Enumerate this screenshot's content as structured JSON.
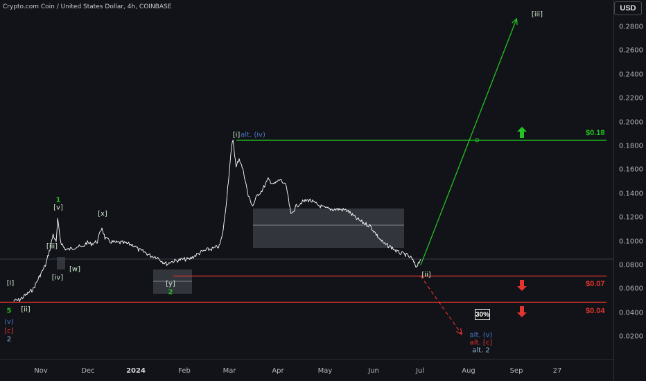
{
  "header": {
    "title": "Crypto.com Coin / United States Dollar, 4h, COINBASE"
  },
  "price_axis": {
    "currency": "USD",
    "ticks": [
      "0.2800",
      "0.2600",
      "0.2400",
      "0.2200",
      "0.2000",
      "0.1800",
      "0.1600",
      "0.1400",
      "0.1200",
      "0.1000",
      "0.0800",
      "0.0600",
      "0.0400",
      "0.0200"
    ]
  },
  "time_axis": {
    "ticks": [
      {
        "label": "Nov",
        "bold": false
      },
      {
        "label": "Dec",
        "bold": false
      },
      {
        "label": "2024",
        "bold": true
      },
      {
        "label": "Feb",
        "bold": false
      },
      {
        "label": "Mar",
        "bold": false
      },
      {
        "label": "Apr",
        "bold": false
      },
      {
        "label": "May",
        "bold": false
      },
      {
        "label": "Jun",
        "bold": false
      },
      {
        "label": "Jul",
        "bold": false
      },
      {
        "label": "Aug",
        "bold": false
      },
      {
        "label": "Sep",
        "bold": false
      },
      {
        "label": "27",
        "bold": false
      }
    ]
  },
  "levels": {
    "target": {
      "label": "$0.18",
      "value": 0.185,
      "color": "#22c322"
    },
    "support_1": {
      "label": "$0.07",
      "value": 0.071,
      "color": "#e3342f"
    },
    "support_2": {
      "label": "$0.04",
      "value": 0.049,
      "color": "#e3342f"
    }
  },
  "probability_badge": "30%",
  "wave_labels": {
    "i_small": "[i]",
    "ii_small": "[ii]",
    "iii_small": "[iii]",
    "iv_small": "[iv]",
    "v_small": "[v]",
    "w": "[w]",
    "x": "[x]",
    "y": "[y]",
    "one": "1",
    "two": "2",
    "five": "5",
    "v_round": "(v)",
    "c_bracket": "[c]",
    "two_gray": "2",
    "top_i": "[i]",
    "alt_iv": "alt. (iv)",
    "ii_current": "[ii]",
    "iii_target": "[iii]",
    "alt_v": "alt. (v)",
    "alt_c": "alt. [c]",
    "alt_2": "alt. 2"
  },
  "colors": {
    "background": "#121318",
    "price_line": "#ffffff",
    "bullish": "#22c322",
    "bearish": "#e3342f",
    "alt_blue": "#4a78c9",
    "zone_fill": "#3a3c44"
  },
  "chart_data": {
    "type": "line",
    "title": "Crypto.com Coin / United States Dollar, 4h, COINBASE",
    "xlabel": "",
    "ylabel": "USD",
    "ylim": [
      0.0085,
      0.3035
    ],
    "x_ticks": [
      "Nov",
      "Dec",
      "2024",
      "Feb",
      "Mar",
      "Apr",
      "May",
      "Jun",
      "Jul",
      "Aug",
      "Sep",
      "27"
    ],
    "series": [
      {
        "values": [
          [
            "2023-10-14",
            0.05
          ],
          [
            "2023-10-18",
            0.051
          ],
          [
            "2023-10-20",
            0.053
          ],
          [
            "2023-10-24",
            0.057
          ],
          [
            "2023-10-27",
            0.06
          ],
          [
            "2023-10-30",
            0.068
          ],
          [
            "2023-11-01",
            0.073
          ],
          [
            "2023-11-04",
            0.08
          ],
          [
            "2023-11-07",
            0.094
          ],
          [
            "2023-11-09",
            0.106
          ],
          [
            "2023-11-11",
            0.099
          ],
          [
            "2023-11-12",
            0.118
          ],
          [
            "2023-11-14",
            0.1
          ],
          [
            "2023-11-16",
            0.095
          ],
          [
            "2023-11-18",
            0.093
          ],
          [
            "2023-11-21",
            0.094
          ],
          [
            "2023-11-25",
            0.096
          ],
          [
            "2023-11-28",
            0.095
          ],
          [
            "2023-12-01",
            0.099
          ],
          [
            "2023-12-04",
            0.098
          ],
          [
            "2023-12-08",
            0.1
          ],
          [
            "2023-12-11",
            0.112
          ],
          [
            "2023-12-13",
            0.103
          ],
          [
            "2023-12-16",
            0.1
          ],
          [
            "2023-12-20",
            0.099
          ],
          [
            "2023-12-24",
            0.099
          ],
          [
            "2023-12-28",
            0.098
          ],
          [
            "2024-01-01",
            0.097
          ],
          [
            "2024-01-04",
            0.093
          ],
          [
            "2024-01-08",
            0.091
          ],
          [
            "2024-01-12",
            0.088
          ],
          [
            "2024-01-16",
            0.087
          ],
          [
            "2024-01-20",
            0.083
          ],
          [
            "2024-01-23",
            0.081
          ],
          [
            "2024-01-25",
            0.083
          ],
          [
            "2024-01-29",
            0.084
          ],
          [
            "2024-02-02",
            0.085
          ],
          [
            "2024-02-06",
            0.085
          ],
          [
            "2024-02-10",
            0.088
          ],
          [
            "2024-02-14",
            0.091
          ],
          [
            "2024-02-18",
            0.093
          ],
          [
            "2024-02-22",
            0.094
          ],
          [
            "2024-02-26",
            0.096
          ],
          [
            "2024-02-28",
            0.105
          ],
          [
            "2024-03-01",
            0.125
          ],
          [
            "2024-03-03",
            0.152
          ],
          [
            "2024-03-05",
            0.178
          ],
          [
            "2024-03-06",
            0.186
          ],
          [
            "2024-03-08",
            0.162
          ],
          [
            "2024-03-10",
            0.17
          ],
          [
            "2024-03-13",
            0.158
          ],
          [
            "2024-03-16",
            0.138
          ],
          [
            "2024-03-19",
            0.13
          ],
          [
            "2024-03-22",
            0.139
          ],
          [
            "2024-03-25",
            0.143
          ],
          [
            "2024-03-29",
            0.152
          ],
          [
            "2024-04-02",
            0.148
          ],
          [
            "2024-04-06",
            0.152
          ],
          [
            "2024-04-10",
            0.146
          ],
          [
            "2024-04-13",
            0.122
          ],
          [
            "2024-04-16",
            0.129
          ],
          [
            "2024-04-20",
            0.133
          ],
          [
            "2024-04-25",
            0.135
          ],
          [
            "2024-04-30",
            0.131
          ],
          [
            "2024-05-05",
            0.128
          ],
          [
            "2024-05-10",
            0.127
          ],
          [
            "2024-05-15",
            0.127
          ],
          [
            "2024-05-20",
            0.126
          ],
          [
            "2024-05-25",
            0.12
          ],
          [
            "2024-05-30",
            0.116
          ],
          [
            "2024-06-04",
            0.113
          ],
          [
            "2024-06-09",
            0.104
          ],
          [
            "2024-06-13",
            0.098
          ],
          [
            "2024-06-18",
            0.095
          ],
          [
            "2024-06-22",
            0.091
          ],
          [
            "2024-06-27",
            0.089
          ],
          [
            "2024-07-01",
            0.086
          ],
          [
            "2024-07-04",
            0.079
          ],
          [
            "2024-07-07",
            0.085
          ]
        ]
      }
    ],
    "projections": [
      {
        "name": "[iii]",
        "points": [
          [
            "2024-07-07",
            0.08
          ],
          [
            "2024-09-08",
            0.287
          ]
        ]
      },
      {
        "name": "alt. (v)",
        "points": [
          [
            "2024-07-07",
            0.071
          ],
          [
            "2024-08-03",
            0.022
          ]
        ]
      }
    ],
    "annotations": [
      "$0.18",
      "$0.07",
      "$0.04",
      "30%"
    ]
  }
}
